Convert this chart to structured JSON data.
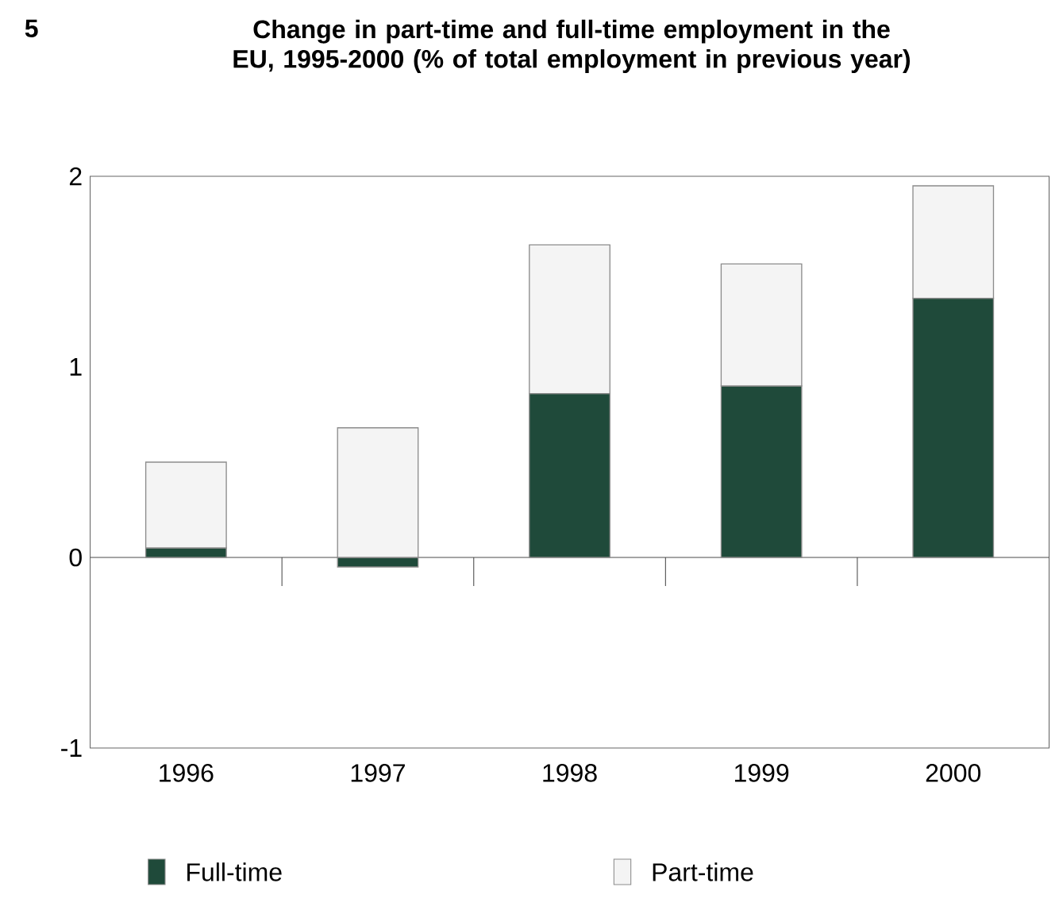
{
  "chart_data": {
    "type": "bar",
    "title": "Change in part-time and full-time employment in the EU, 1995-2000 (% of total employment in previous year)",
    "annotations": [
      "5"
    ],
    "categories": [
      "1996",
      "1997",
      "1998",
      "1999",
      "2000"
    ],
    "stacked": true,
    "series": [
      {
        "name": "Full-time",
        "color": "#1f4a3a",
        "values": [
          0.05,
          -0.05,
          0.86,
          0.9,
          1.36
        ]
      },
      {
        "name": "Part-time",
        "color": "#f4f4f4",
        "values": [
          0.45,
          0.68,
          0.78,
          0.64,
          0.59
        ]
      }
    ],
    "ref_lines": [
      {
        "axis": "y",
        "value": 0
      }
    ],
    "ylim": [
      -1,
      2
    ],
    "yticks": [
      -1,
      0,
      1,
      2
    ],
    "legend": "bottom"
  }
}
